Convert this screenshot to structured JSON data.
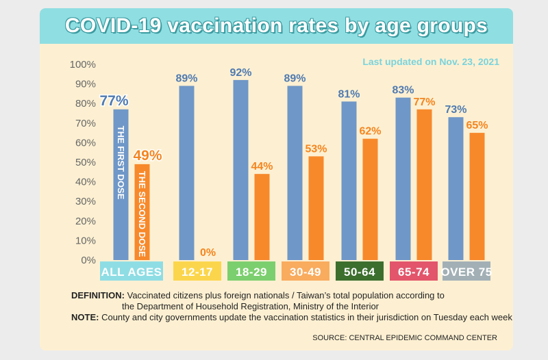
{
  "title": "COVID-19 vaccination rates by age groups",
  "updated": "Last updated on Nov. 23, 2021",
  "definition_label": "DEFINITION:",
  "definition_line1": "Vaccinated citizens plus foreign nationals / Taiwan’s total population according to",
  "definition_line2": "the Department of Household Registration, Ministry of the Interior",
  "note_label": "NOTE:",
  "note_text": "County and city governments update the vaccination statistics in their jurisdiction on Tuesday each week",
  "source": "SOURCE: CENTRAL EPIDEMIC COMMAND CENTER",
  "colors": {
    "first_dose": "#6f97c7",
    "second_dose": "#f7892b",
    "label_first": "#4f7ab0",
    "label_second": "#f4851f"
  },
  "chart_data": {
    "type": "bar",
    "categories": [
      "ALL AGES",
      "12-17",
      "18-29",
      "30-49",
      "50-64",
      "65-74",
      "OVER 75"
    ],
    "category_colors": [
      "#8fdde4",
      "#fbd64d",
      "#7ccf6e",
      "#f9ab5e",
      "#3c6e2e",
      "#e2556b",
      "#a2b0b6"
    ],
    "series": [
      {
        "name": "THE FIRST DOSE",
        "values": [
          77,
          89,
          92,
          89,
          81,
          83,
          73
        ]
      },
      {
        "name": "THE SECOND DOSE",
        "values": [
          49,
          0,
          44,
          53,
          62,
          77,
          65
        ]
      }
    ],
    "yticks": [
      "0%",
      "10%",
      "20%",
      "30%",
      "40%",
      "50%",
      "60%",
      "70%",
      "80%",
      "90%",
      "100%"
    ],
    "ylim": [
      0,
      100
    ],
    "value_suffix": "%"
  }
}
